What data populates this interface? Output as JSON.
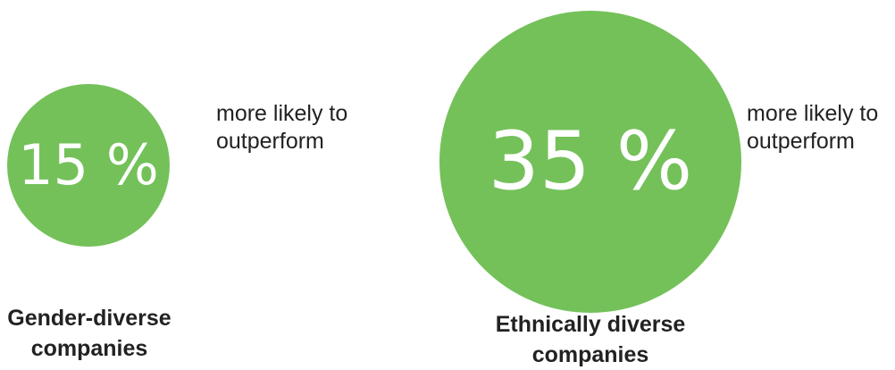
{
  "chart_data": {
    "type": "bubble",
    "unit": "%",
    "color": "#74c15a",
    "items": [
      {
        "value": 15,
        "display": "15 %",
        "caption_lines": [
          "more likely to",
          "outperform"
        ],
        "label_lines": [
          "Gender-diverse",
          "companies"
        ]
      },
      {
        "value": 35,
        "display": "35 %",
        "caption_lines": [
          "more likely to",
          "outperform"
        ],
        "label_lines": [
          "Ethnically diverse",
          "companies"
        ]
      }
    ]
  }
}
